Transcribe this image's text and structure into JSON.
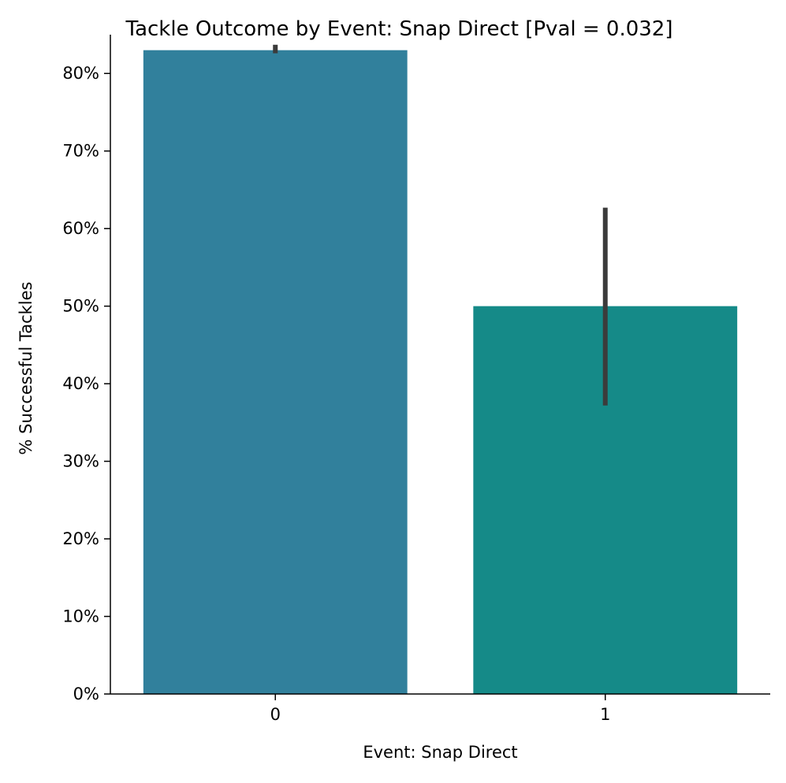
{
  "chart_data": {
    "type": "bar",
    "title": "Tackle Outcome by Event: Snap Direct [Pval = 0.032]",
    "xlabel": "Event: Snap Direct",
    "ylabel": "% Successful Tackles",
    "categories": [
      "0",
      "1"
    ],
    "values": [
      0.83,
      0.5
    ],
    "error_low": [
      0.826,
      0.372
    ],
    "error_high": [
      0.837,
      0.627
    ],
    "ylim": [
      0,
      0.85
    ],
    "yticks": [
      0,
      0.1,
      0.2,
      0.3,
      0.4,
      0.5,
      0.6,
      0.7,
      0.8
    ],
    "ytick_labels": [
      "0%",
      "10%",
      "20%",
      "30%",
      "40%",
      "50%",
      "60%",
      "70%",
      "80%"
    ],
    "grid": false,
    "colors": [
      "#31809c",
      "#158a88"
    ],
    "errorbar_color": "#3b3b3b"
  }
}
